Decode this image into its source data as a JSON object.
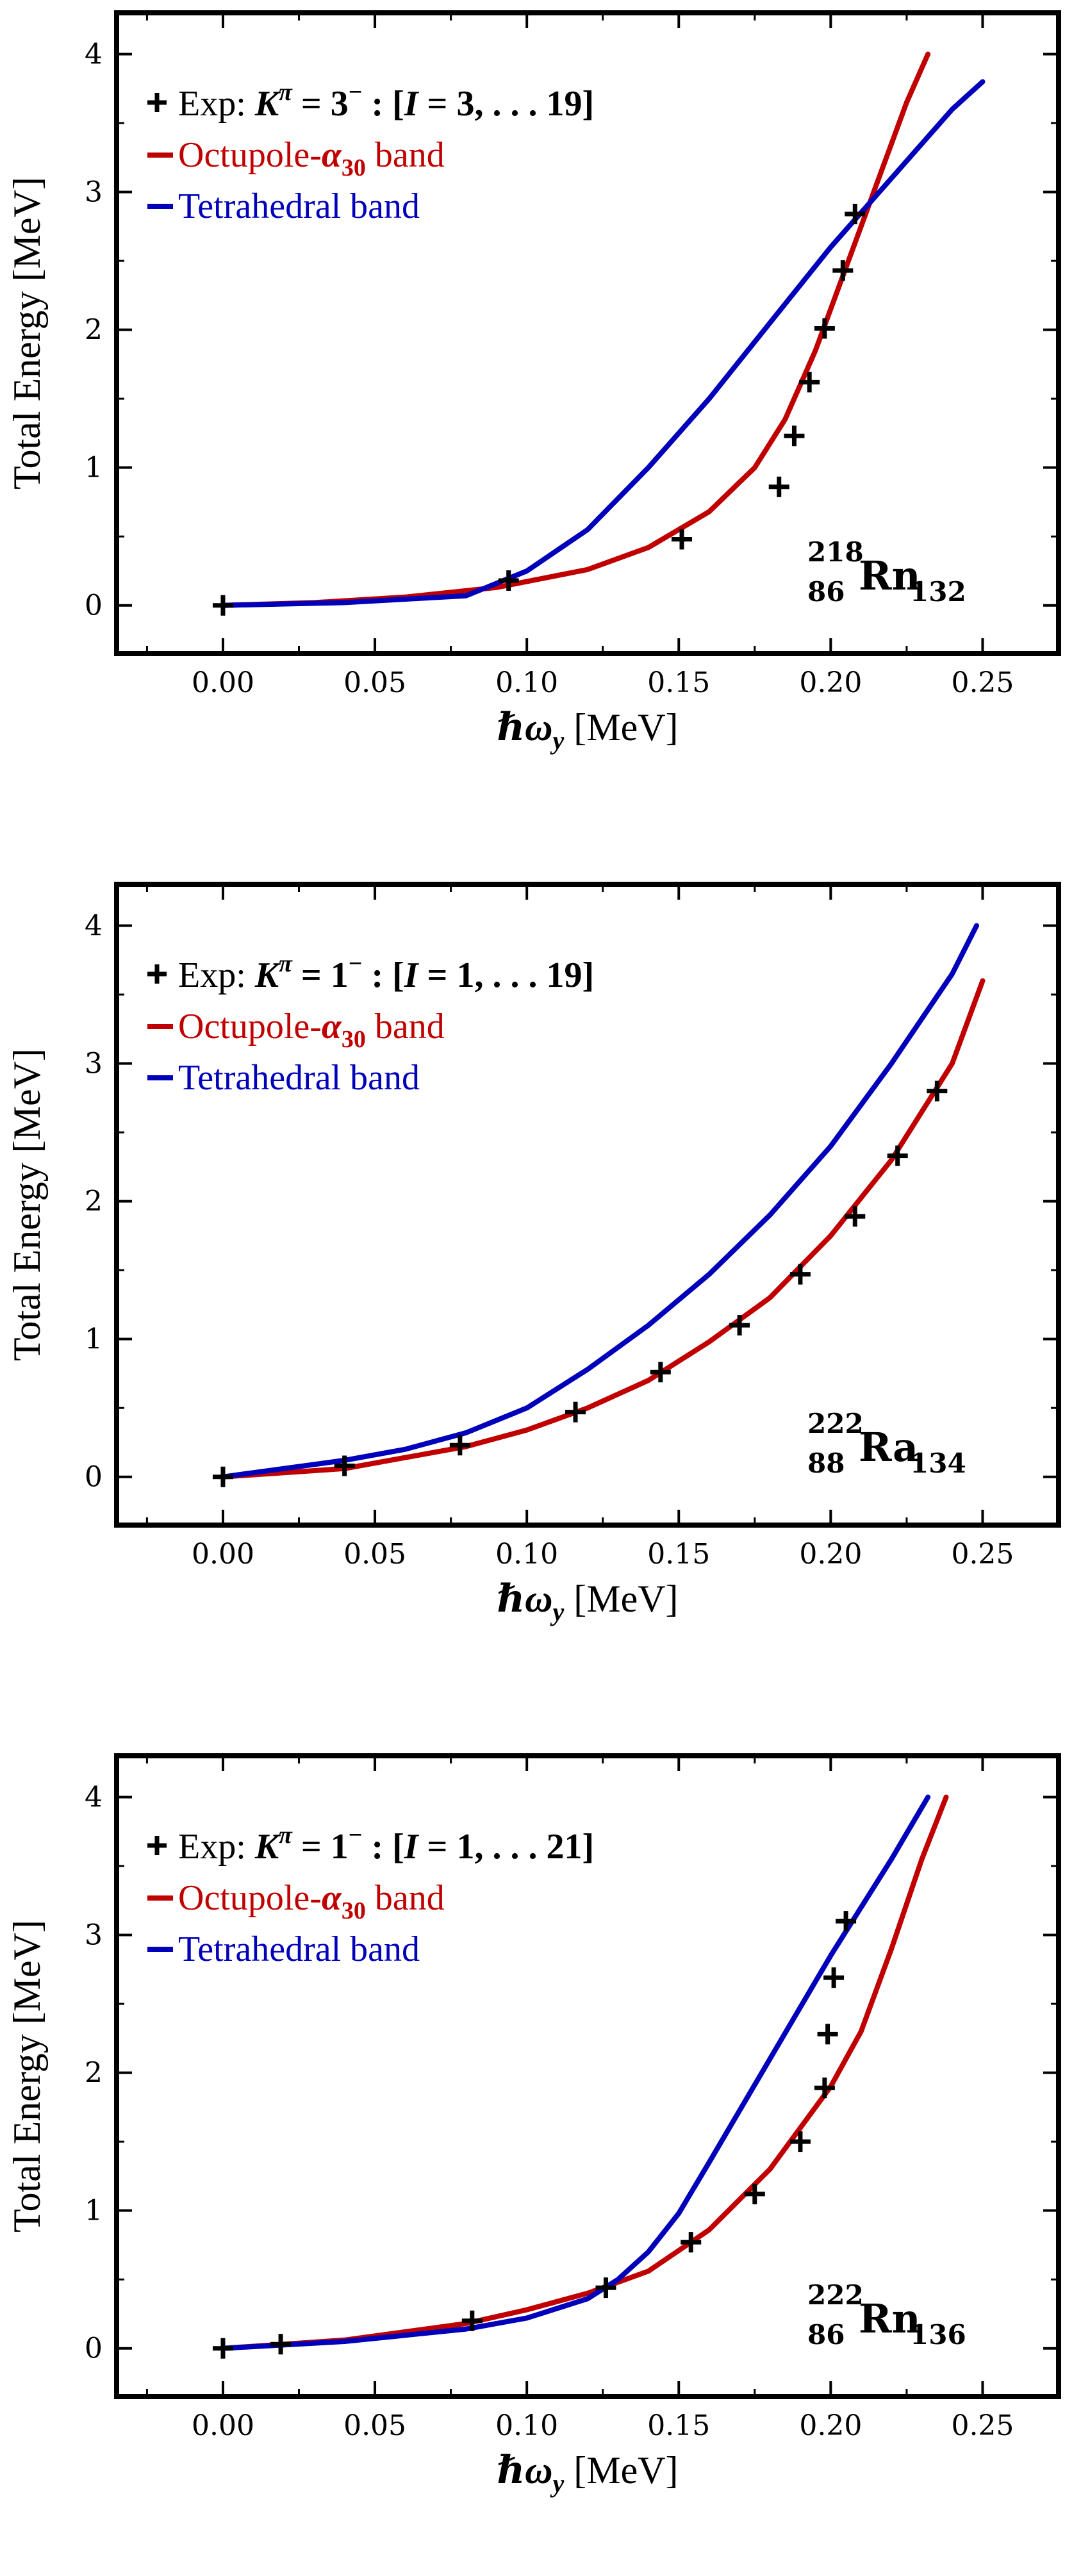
{
  "colors": {
    "octupole": "#c00000",
    "tetrahedral": "#0000bb",
    "exp": "#000000"
  },
  "chart_data": [
    {
      "type": "line",
      "xlabel_main": "ℏω",
      "xlabel_sub": "y",
      "xlabel_unit": " [MeV]",
      "ylabel": "Total Energy [MeV]",
      "xlim": [
        -0.035,
        0.275
      ],
      "ylim": [
        -0.35,
        4.3
      ],
      "xticks": [
        "0.00",
        "0.05",
        "0.10",
        "0.15",
        "0.20",
        "0.25"
      ],
      "yticks": [
        "0",
        "1",
        "2",
        "3",
        "4"
      ],
      "nucleus": {
        "mass": "218",
        "z": "86",
        "symbol": "Rn",
        "n": "132"
      },
      "legend": {
        "exp_prefix": "Exp:",
        "exp_formula": "Kπ = 3− : [I = 3, … 19]",
        "exp_k": "K",
        "exp_pi": "π",
        "exp_eq": " = 3",
        "exp_minus": "−",
        "exp_rest": " : [",
        "exp_i": "I",
        "exp_range": " = 3, . . . 19]",
        "octupole_label": "Octupole-α₃₀ band",
        "oct_main": "Octupole-",
        "oct_alpha": "α",
        "oct_sub": "30",
        "oct_tail": " band",
        "tetra_label": "Tetrahedral band"
      },
      "series": [
        {
          "name": "Octupole-α30 band",
          "x": [
            0.0,
            0.03,
            0.06,
            0.09,
            0.12,
            0.14,
            0.16,
            0.175,
            0.185,
            0.195,
            0.205,
            0.215,
            0.225,
            0.232
          ],
          "y": [
            0.0,
            0.02,
            0.06,
            0.13,
            0.26,
            0.42,
            0.68,
            1.0,
            1.35,
            1.85,
            2.45,
            3.05,
            3.65,
            4.0
          ]
        },
        {
          "name": "Tetrahedral band",
          "x": [
            0.0,
            0.04,
            0.08,
            0.1,
            0.12,
            0.14,
            0.16,
            0.18,
            0.2,
            0.22,
            0.24,
            0.25
          ],
          "y": [
            0.0,
            0.02,
            0.07,
            0.25,
            0.55,
            1.0,
            1.5,
            2.05,
            2.6,
            3.1,
            3.6,
            3.8
          ]
        }
      ],
      "points": {
        "name": "Exp",
        "x": [
          0.0,
          0.094,
          0.151,
          0.183,
          0.188,
          0.193,
          0.198,
          0.204,
          0.208
        ],
        "y": [
          0.0,
          0.18,
          0.48,
          0.86,
          1.23,
          1.62,
          2.01,
          2.43,
          2.84
        ]
      }
    },
    {
      "type": "line",
      "xlabel_main": "ℏω",
      "xlabel_sub": "y",
      "xlabel_unit": " [MeV]",
      "ylabel": "Total Energy [MeV]",
      "xlim": [
        -0.035,
        0.275
      ],
      "ylim": [
        -0.35,
        4.3
      ],
      "xticks": [
        "0.00",
        "0.05",
        "0.10",
        "0.15",
        "0.20",
        "0.25"
      ],
      "yticks": [
        "0",
        "1",
        "2",
        "3",
        "4"
      ],
      "nucleus": {
        "mass": "222",
        "z": "88",
        "symbol": "Ra",
        "n": "134"
      },
      "legend": {
        "exp_prefix": "Exp:",
        "exp_formula": "Kπ = 1− : [I = 1, … 19]",
        "exp_k": "K",
        "exp_pi": "π",
        "exp_eq": " = 1",
        "exp_minus": "−",
        "exp_rest": " : [",
        "exp_i": "I",
        "exp_range": " = 1, . . . 19]",
        "octupole_label": "Octupole-α₃₀ band",
        "oct_main": "Octupole-",
        "oct_alpha": "α",
        "oct_sub": "30",
        "oct_tail": " band",
        "tetra_label": "Tetrahedral band"
      },
      "series": [
        {
          "name": "Octupole-α30 band",
          "x": [
            0.0,
            0.04,
            0.08,
            0.1,
            0.12,
            0.14,
            0.16,
            0.18,
            0.2,
            0.22,
            0.24,
            0.25
          ],
          "y": [
            0.0,
            0.06,
            0.22,
            0.34,
            0.5,
            0.7,
            0.98,
            1.3,
            1.75,
            2.3,
            3.0,
            3.6
          ]
        },
        {
          "name": "Tetrahedral band",
          "x": [
            0.0,
            0.04,
            0.06,
            0.08,
            0.1,
            0.12,
            0.14,
            0.16,
            0.18,
            0.2,
            0.22,
            0.24,
            0.248
          ],
          "y": [
            0.0,
            0.12,
            0.2,
            0.32,
            0.5,
            0.78,
            1.1,
            1.47,
            1.9,
            2.4,
            3.0,
            3.65,
            4.0
          ]
        }
      ],
      "points": {
        "name": "Exp",
        "x": [
          0.0,
          0.04,
          0.078,
          0.116,
          0.144,
          0.17,
          0.19,
          0.208,
          0.222,
          0.235
        ],
        "y": [
          0.0,
          0.08,
          0.23,
          0.47,
          0.76,
          1.1,
          1.47,
          1.89,
          2.33,
          2.8
        ]
      }
    },
    {
      "type": "line",
      "xlabel_main": "ℏω",
      "xlabel_sub": "y",
      "xlabel_unit": " [MeV]",
      "ylabel": "Total Energy [MeV]",
      "xlim": [
        -0.035,
        0.275
      ],
      "ylim": [
        -0.35,
        4.3
      ],
      "xticks": [
        "0.00",
        "0.05",
        "0.10",
        "0.15",
        "0.20",
        "0.25"
      ],
      "yticks": [
        "0",
        "1",
        "2",
        "3",
        "4"
      ],
      "nucleus": {
        "mass": "222",
        "z": "86",
        "symbol": "Rn",
        "n": "136"
      },
      "legend": {
        "exp_prefix": "Exp:",
        "exp_formula": "Kπ = 1− : [I = 1, … 21]",
        "exp_k": "K",
        "exp_pi": "π",
        "exp_eq": " = 1",
        "exp_minus": "−",
        "exp_rest": " : [",
        "exp_i": "I",
        "exp_range": " = 1, . . . 21]",
        "octupole_label": "Octupole-α₃₀ band",
        "oct_main": "Octupole-",
        "oct_alpha": "α",
        "oct_sub": "30",
        "oct_tail": " band",
        "tetra_label": "Tetrahedral band"
      },
      "series": [
        {
          "name": "Octupole-α30 band",
          "x": [
            0.0,
            0.04,
            0.08,
            0.1,
            0.12,
            0.14,
            0.16,
            0.18,
            0.2,
            0.21,
            0.22,
            0.23,
            0.238
          ],
          "y": [
            0.0,
            0.06,
            0.18,
            0.28,
            0.4,
            0.56,
            0.86,
            1.3,
            1.9,
            2.3,
            2.9,
            3.55,
            4.0
          ]
        },
        {
          "name": "Tetrahedral band",
          "x": [
            0.0,
            0.04,
            0.08,
            0.1,
            0.12,
            0.13,
            0.14,
            0.15,
            0.16,
            0.18,
            0.2,
            0.22,
            0.232
          ],
          "y": [
            0.0,
            0.05,
            0.14,
            0.22,
            0.36,
            0.5,
            0.7,
            0.98,
            1.35,
            2.1,
            2.85,
            3.55,
            4.0
          ]
        }
      ],
      "points": {
        "name": "Exp",
        "x": [
          0.0,
          0.019,
          0.082,
          0.126,
          0.154,
          0.175,
          0.19,
          0.198,
          0.199,
          0.201,
          0.205
        ],
        "y": [
          0.0,
          0.03,
          0.2,
          0.44,
          0.77,
          1.12,
          1.5,
          1.89,
          2.28,
          2.69,
          3.1
        ]
      }
    }
  ]
}
